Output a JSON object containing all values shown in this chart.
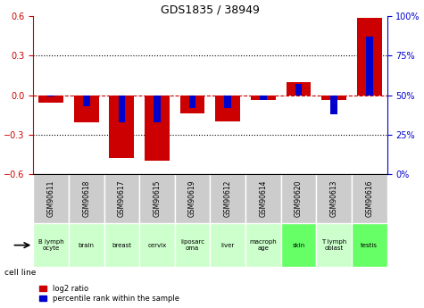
{
  "title": "GDS1835 / 38949",
  "samples": [
    "GSM90611",
    "GSM90618",
    "GSM90617",
    "GSM90615",
    "GSM90619",
    "GSM90612",
    "GSM90614",
    "GSM90620",
    "GSM90613",
    "GSM90616"
  ],
  "cell_lines": [
    "B lymph\nocyte",
    "brain",
    "breast",
    "cervix",
    "liposarc\noma",
    "liver",
    "macroph\nage",
    "skin",
    "T lymph\noblast",
    "testis"
  ],
  "cell_line_colors": [
    "#ccffcc",
    "#ccffcc",
    "#ccffcc",
    "#ccffcc",
    "#ccffcc",
    "#ccffcc",
    "#ccffcc",
    "#66ff66",
    "#ccffcc",
    "#66ff66"
  ],
  "log2_ratio": [
    -0.06,
    -0.21,
    -0.48,
    -0.5,
    -0.14,
    -0.2,
    -0.04,
    0.1,
    -0.04,
    0.59
  ],
  "percentile_rank": [
    49,
    43,
    33,
    33,
    42,
    42,
    47,
    57,
    38,
    87
  ],
  "ylim_left": [
    -0.6,
    0.6
  ],
  "ylim_right": [
    0,
    100
  ],
  "yticks_left": [
    -0.6,
    -0.3,
    0,
    0.3,
    0.6
  ],
  "yticks_right": [
    0,
    25,
    50,
    75,
    100
  ],
  "bar_width": 0.35,
  "red_color": "#cc0000",
  "blue_color": "#0000cc",
  "bg_color": "#ffffff",
  "grid_color": "#000000",
  "sample_bg": "#cccccc",
  "legend_red": "log2 ratio",
  "legend_blue": "percentile rank within the sample",
  "cell_line_label": "cell line"
}
